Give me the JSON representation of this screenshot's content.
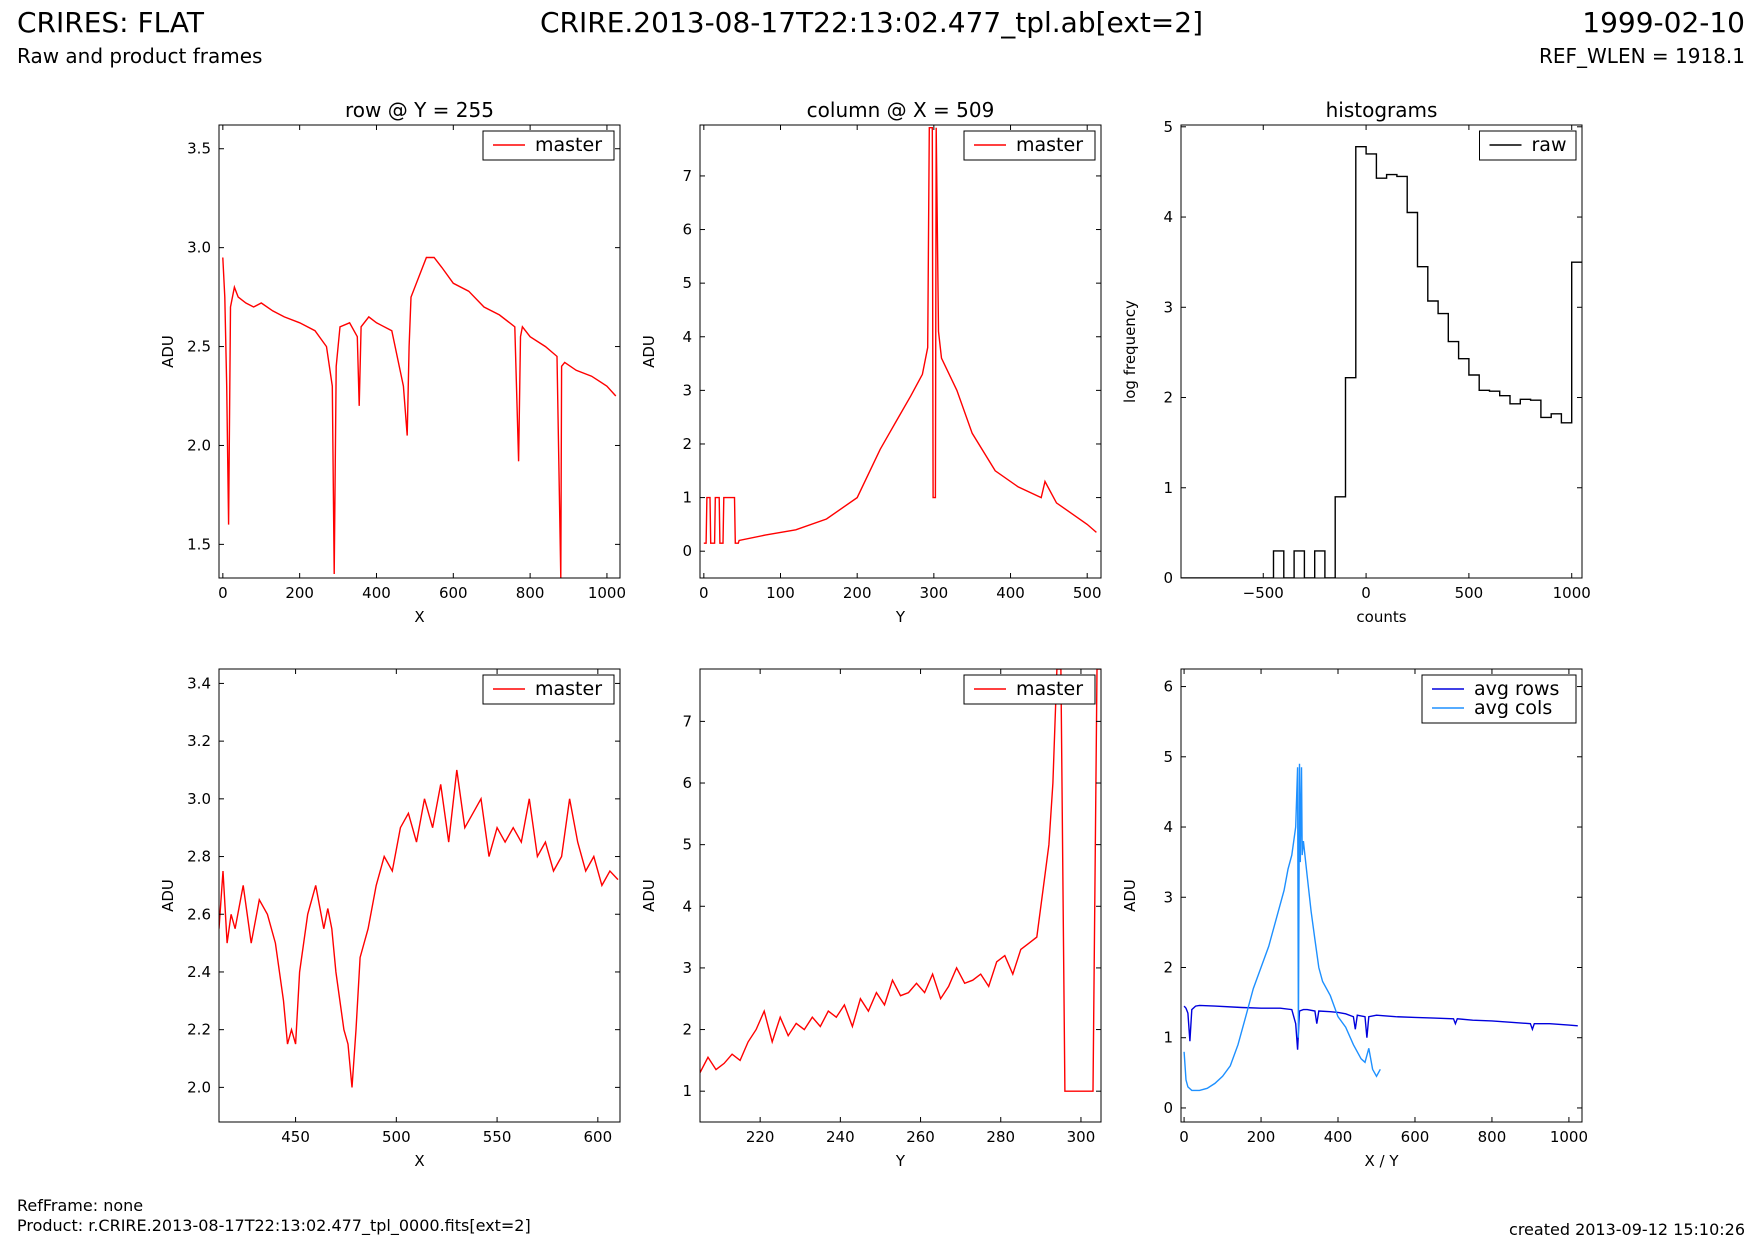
{
  "header": {
    "title": "CRIRES: FLAT",
    "subtitle": "Raw and product frames",
    "file": "CRIRE.2013-08-17T22:13:02.477_tpl.ab[ext=2]",
    "date": "1999-02-10",
    "ref_wlen": "REF_WLEN = 1918.1"
  },
  "footer": {
    "ref_frame": "RefFrame: none",
    "product": "Product: r.CRIRE.2013-08-17T22:13:02.477_tpl_0000.fits[ext=2]",
    "created": "created 2013-09-12 15:10:26"
  },
  "colors": {
    "red": "#ff0000",
    "black": "#000000",
    "blue": "#0000dd",
    "lightblue": "#1e90ff"
  },
  "chart_data": [
    {
      "id": "row",
      "type": "line",
      "title": "row @ Y = 255",
      "xlabel": "X",
      "ylabel": "ADU",
      "xlim": [
        -10,
        1034
      ],
      "ylim": [
        1.33,
        3.62
      ],
      "xticks": [
        0,
        200,
        400,
        600,
        800,
        1000
      ],
      "yticks": [
        1.5,
        2.0,
        2.5,
        3.0,
        3.5
      ],
      "ytick_labels": [
        "1.5",
        "2.0",
        "2.5",
        "3.0",
        "3.5"
      ],
      "legend": "top-right",
      "series": [
        {
          "name": "master",
          "color": "#ff0000",
          "x": [
            0,
            5,
            10,
            15,
            20,
            30,
            40,
            60,
            80,
            100,
            130,
            160,
            200,
            240,
            270,
            285,
            290,
            295,
            305,
            330,
            350,
            355,
            360,
            380,
            400,
            440,
            470,
            480,
            485,
            490,
            510,
            530,
            550,
            570,
            600,
            640,
            680,
            720,
            760,
            770,
            775,
            780,
            800,
            840,
            870,
            880,
            882,
            890,
            920,
            960,
            1000,
            1023
          ],
          "y": [
            2.95,
            2.75,
            2.3,
            1.6,
            2.7,
            2.8,
            2.75,
            2.72,
            2.7,
            2.72,
            2.68,
            2.65,
            2.62,
            2.58,
            2.5,
            2.3,
            1.35,
            2.4,
            2.6,
            2.62,
            2.55,
            2.2,
            2.6,
            2.65,
            2.62,
            2.58,
            2.3,
            2.05,
            2.5,
            2.75,
            2.85,
            2.95,
            2.95,
            2.9,
            2.82,
            2.78,
            2.7,
            2.66,
            2.6,
            1.92,
            2.55,
            2.6,
            2.55,
            2.5,
            2.45,
            1.33,
            2.4,
            2.42,
            2.38,
            2.35,
            2.3,
            2.25
          ]
        }
      ]
    },
    {
      "id": "column",
      "type": "line",
      "title": "column @ X = 509",
      "xlabel": "Y",
      "ylabel": "ADU",
      "xlim": [
        -5,
        518
      ],
      "ylim": [
        -0.5,
        7.95
      ],
      "xticks": [
        0,
        100,
        200,
        300,
        400,
        500
      ],
      "yticks": [
        0,
        1,
        2,
        3,
        4,
        5,
        6,
        7
      ],
      "ytick_labels": [
        "0",
        "1",
        "2",
        "3",
        "4",
        "5",
        "6",
        "7"
      ],
      "legend": "top-right",
      "series": [
        {
          "name": "master",
          "color": "#ff0000",
          "x": [
            0,
            3,
            4,
            8,
            9,
            14,
            15,
            20,
            21,
            25,
            26,
            40,
            41,
            45,
            46,
            80,
            120,
            160,
            200,
            230,
            250,
            270,
            285,
            292,
            294,
            298,
            299,
            302,
            303,
            306,
            310,
            330,
            350,
            380,
            410,
            440,
            445,
            460,
            480,
            500,
            512
          ],
          "y": [
            0.15,
            0.15,
            1.0,
            1.0,
            0.15,
            0.15,
            1.0,
            1.0,
            0.15,
            0.15,
            1.0,
            1.0,
            0.15,
            0.15,
            0.2,
            0.3,
            0.4,
            0.6,
            1.0,
            1.9,
            2.4,
            2.9,
            3.3,
            3.8,
            7.9,
            7.9,
            1.0,
            1.0,
            7.9,
            4.1,
            3.6,
            3.0,
            2.2,
            1.5,
            1.2,
            1.0,
            1.3,
            0.9,
            0.7,
            0.5,
            0.35
          ]
        }
      ]
    },
    {
      "id": "histograms",
      "type": "line",
      "title": "histograms",
      "xlabel": "counts",
      "ylabel": "log frequency",
      "xlim": [
        -900,
        1050
      ],
      "ylim": [
        0,
        5.02
      ],
      "xticks": [
        -500,
        0,
        500,
        1000
      ],
      "xtick_labels": [
        "−500",
        "0",
        "500",
        "1000"
      ],
      "yticks": [
        0,
        1,
        2,
        3,
        4,
        5
      ],
      "ytick_labels": [
        "0",
        "1",
        "2",
        "3",
        "4",
        "5"
      ],
      "legend": "top-right",
      "series": [
        {
          "name": "raw",
          "color": "#000000",
          "x": [
            -900,
            -450,
            -450,
            -400,
            -400,
            -350,
            -350,
            -300,
            -300,
            -250,
            -250,
            -200,
            -200,
            -150,
            -150,
            -100,
            -100,
            -50,
            -50,
            0,
            0,
            50,
            50,
            100,
            100,
            150,
            150,
            200,
            200,
            250,
            250,
            300,
            300,
            350,
            350,
            400,
            400,
            450,
            450,
            500,
            500,
            550,
            550,
            600,
            600,
            650,
            650,
            700,
            700,
            750,
            750,
            800,
            800,
            850,
            850,
            900,
            900,
            950,
            950,
            1000,
            1000,
            1050
          ],
          "y": [
            0,
            0,
            0.3,
            0.3,
            0,
            0,
            0.3,
            0.3,
            0,
            0,
            0.3,
            0.3,
            0,
            0,
            0.9,
            0.9,
            2.22,
            2.22,
            4.78,
            4.78,
            4.7,
            4.7,
            4.43,
            4.43,
            4.47,
            4.47,
            4.45,
            4.45,
            4.05,
            4.05,
            3.45,
            3.45,
            3.07,
            3.07,
            2.93,
            2.93,
            2.62,
            2.62,
            2.43,
            2.43,
            2.25,
            2.25,
            2.08,
            2.08,
            2.07,
            2.07,
            2.02,
            2.02,
            1.93,
            1.93,
            1.98,
            1.98,
            1.97,
            1.97,
            1.78,
            1.78,
            1.82,
            1.82,
            1.72,
            1.72,
            3.5,
            3.5
          ]
        }
      ]
    },
    {
      "id": "row-zoom",
      "type": "line",
      "title": "",
      "xlabel": "X",
      "ylabel": "ADU",
      "xlim": [
        412,
        611
      ],
      "ylim": [
        1.88,
        3.45
      ],
      "xticks": [
        450,
        500,
        550,
        600
      ],
      "yticks": [
        2.0,
        2.2,
        2.4,
        2.6,
        2.8,
        3.0,
        3.2,
        3.4
      ],
      "ytick_labels": [
        "2.0",
        "2.2",
        "2.4",
        "2.6",
        "2.8",
        "3.0",
        "3.2",
        "3.4"
      ],
      "legend": "top-right",
      "series": [
        {
          "name": "master",
          "color": "#ff0000",
          "x": [
            412,
            414,
            416,
            418,
            420,
            424,
            428,
            432,
            436,
            440,
            444,
            446,
            448,
            450,
            452,
            456,
            460,
            464,
            466,
            468,
            470,
            474,
            476,
            478,
            480,
            482,
            486,
            490,
            494,
            498,
            502,
            506,
            510,
            514,
            518,
            522,
            526,
            530,
            534,
            538,
            542,
            546,
            550,
            554,
            558,
            562,
            566,
            570,
            574,
            578,
            582,
            586,
            590,
            594,
            598,
            602,
            606,
            610
          ],
          "y": [
            2.55,
            2.75,
            2.5,
            2.6,
            2.55,
            2.7,
            2.5,
            2.65,
            2.6,
            2.5,
            2.3,
            2.15,
            2.2,
            2.15,
            2.4,
            2.6,
            2.7,
            2.55,
            2.62,
            2.55,
            2.4,
            2.2,
            2.15,
            2.0,
            2.2,
            2.45,
            2.55,
            2.7,
            2.8,
            2.75,
            2.9,
            2.95,
            2.85,
            3.0,
            2.9,
            3.05,
            2.85,
            3.1,
            2.9,
            2.95,
            3.0,
            2.8,
            2.9,
            2.85,
            2.9,
            2.85,
            3.0,
            2.8,
            2.85,
            2.75,
            2.8,
            3.0,
            2.85,
            2.75,
            2.8,
            2.7,
            2.75,
            2.72
          ]
        }
      ]
    },
    {
      "id": "column-zoom",
      "type": "line",
      "title": "",
      "xlabel": "Y",
      "ylabel": "ADU",
      "xlim": [
        205,
        305
      ],
      "ylim": [
        0.5,
        7.85
      ],
      "xticks": [
        220,
        240,
        260,
        280,
        300
      ],
      "yticks": [
        1,
        2,
        3,
        4,
        5,
        6,
        7
      ],
      "ytick_labels": [
        "1",
        "2",
        "3",
        "4",
        "5",
        "6",
        "7"
      ],
      "legend": "top-right",
      "series": [
        {
          "name": "master",
          "color": "#ff0000",
          "x": [
            205,
            207,
            209,
            211,
            213,
            215,
            217,
            219,
            221,
            223,
            225,
            227,
            229,
            231,
            233,
            235,
            237,
            239,
            241,
            243,
            245,
            247,
            249,
            251,
            253,
            255,
            257,
            259,
            261,
            263,
            265,
            267,
            269,
            271,
            273,
            275,
            277,
            279,
            281,
            283,
            285,
            287,
            289,
            291,
            292,
            293,
            294,
            295,
            296,
            297,
            303,
            304,
            305
          ],
          "y": [
            1.3,
            1.55,
            1.35,
            1.45,
            1.6,
            1.5,
            1.8,
            2.0,
            2.3,
            1.8,
            2.2,
            1.9,
            2.1,
            2.0,
            2.2,
            2.05,
            2.3,
            2.2,
            2.4,
            2.05,
            2.5,
            2.3,
            2.6,
            2.4,
            2.8,
            2.55,
            2.6,
            2.75,
            2.6,
            2.9,
            2.5,
            2.7,
            3.0,
            2.75,
            2.8,
            2.9,
            2.7,
            3.1,
            3.2,
            2.9,
            3.3,
            3.4,
            3.5,
            4.5,
            5.0,
            6.0,
            7.85,
            7.85,
            1.0,
            1.0,
            1.0,
            7.85,
            7.85
          ]
        }
      ]
    },
    {
      "id": "averages",
      "type": "line",
      "title": "",
      "xlabel": "X / Y",
      "ylabel": "ADU",
      "xlim": [
        -8,
        1034
      ],
      "ylim": [
        -0.2,
        6.25
      ],
      "xticks": [
        0,
        200,
        400,
        600,
        800,
        1000
      ],
      "yticks": [
        0,
        1,
        2,
        3,
        4,
        5,
        6
      ],
      "ytick_labels": [
        "0",
        "1",
        "2",
        "3",
        "4",
        "5",
        "6"
      ],
      "legend": "top-right",
      "series": [
        {
          "name": "avg rows",
          "color": "#0000dd",
          "x": [
            0,
            5,
            10,
            15,
            20,
            30,
            40,
            80,
            150,
            200,
            250,
            280,
            290,
            295,
            300,
            310,
            320,
            340,
            345,
            350,
            380,
            400,
            420,
            440,
            445,
            450,
            470,
            475,
            480,
            500,
            550,
            600,
            650,
            700,
            705,
            710,
            750,
            800,
            850,
            900,
            905,
            910,
            950,
            1000,
            1023
          ],
          "y": [
            1.45,
            1.42,
            1.35,
            0.95,
            1.4,
            1.45,
            1.46,
            1.45,
            1.43,
            1.42,
            1.42,
            1.4,
            1.2,
            0.83,
            1.38,
            1.4,
            1.4,
            1.38,
            1.2,
            1.38,
            1.37,
            1.36,
            1.34,
            1.3,
            1.12,
            1.32,
            1.3,
            1.0,
            1.3,
            1.32,
            1.3,
            1.29,
            1.28,
            1.27,
            1.2,
            1.27,
            1.25,
            1.24,
            1.22,
            1.2,
            1.12,
            1.2,
            1.2,
            1.18,
            1.17
          ]
        },
        {
          "name": "avg cols",
          "color": "#1e90ff",
          "x": [
            0,
            5,
            10,
            20,
            40,
            60,
            80,
            100,
            120,
            140,
            160,
            180,
            200,
            220,
            240,
            260,
            270,
            280,
            290,
            295,
            297,
            300,
            302,
            305,
            307,
            310,
            320,
            330,
            340,
            350,
            360,
            380,
            400,
            420,
            440,
            460,
            470,
            480,
            490,
            500,
            510
          ],
          "y": [
            0.8,
            0.4,
            0.3,
            0.25,
            0.25,
            0.28,
            0.35,
            0.45,
            0.6,
            0.9,
            1.3,
            1.7,
            2.0,
            2.3,
            2.7,
            3.1,
            3.4,
            3.6,
            4.0,
            4.85,
            1.0,
            4.9,
            3.5,
            4.85,
            3.6,
            3.8,
            3.3,
            2.8,
            2.4,
            2.0,
            1.8,
            1.6,
            1.3,
            1.15,
            0.9,
            0.7,
            0.65,
            0.85,
            0.55,
            0.45,
            0.55
          ]
        }
      ]
    }
  ]
}
